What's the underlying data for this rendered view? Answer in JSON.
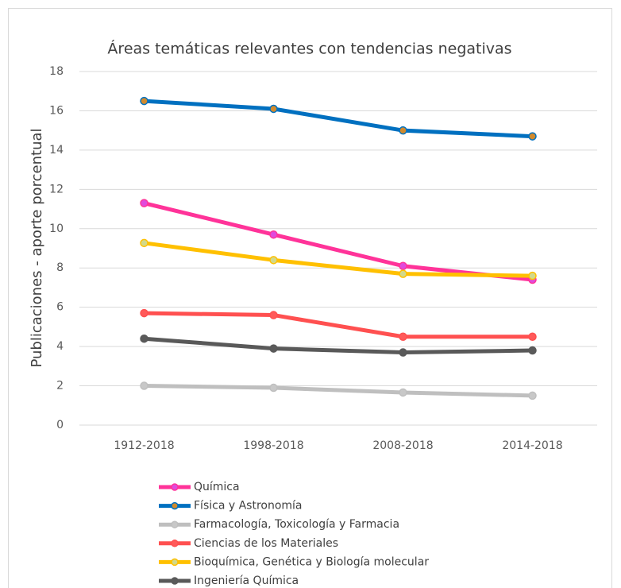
{
  "chart_data": {
    "type": "line",
    "title": "Áreas temáticas relevantes con tendencias negativas",
    "ylabel": "Publicaciones - aporte porcentual",
    "categories": [
      "1912-2018",
      "1998-2018",
      "2008-2018",
      "2014-2018"
    ],
    "ylim": [
      0,
      18
    ],
    "yticks": [
      0,
      2,
      4,
      6,
      8,
      10,
      12,
      14,
      16,
      18
    ],
    "grid": true,
    "legend": "bottom",
    "series": [
      {
        "name": "Química",
        "color": "#ff3399",
        "marker_color": "#e04adc",
        "values": [
          11.3,
          9.7,
          8.1,
          7.4
        ]
      },
      {
        "name": "Física y Astronomía",
        "color": "#0070c0",
        "marker_color": "#d08a2e",
        "values": [
          16.5,
          16.1,
          15.0,
          14.7
        ]
      },
      {
        "name": "Farmacología, Toxicología y Farmacia",
        "color": "#bfbfbf",
        "marker_color": "#c8c8c8",
        "values": [
          2.0,
          1.9,
          1.66,
          1.5
        ]
      },
      {
        "name": "Ciencias de los Materiales",
        "color": "#ff5050",
        "marker_color": "#ff5a5a",
        "values": [
          5.7,
          5.6,
          4.5,
          4.5
        ]
      },
      {
        "name": "Bioquímica, Genética y Biología molecular",
        "color": "#ffc000",
        "marker_color": "#d2d98a",
        "values": [
          9.27,
          8.4,
          7.7,
          7.6
        ]
      },
      {
        "name": "Ingeniería Química",
        "color": "#595959",
        "marker_color": "#5a5a5a",
        "values": [
          4.4,
          3.9,
          3.7,
          3.8
        ]
      }
    ]
  }
}
